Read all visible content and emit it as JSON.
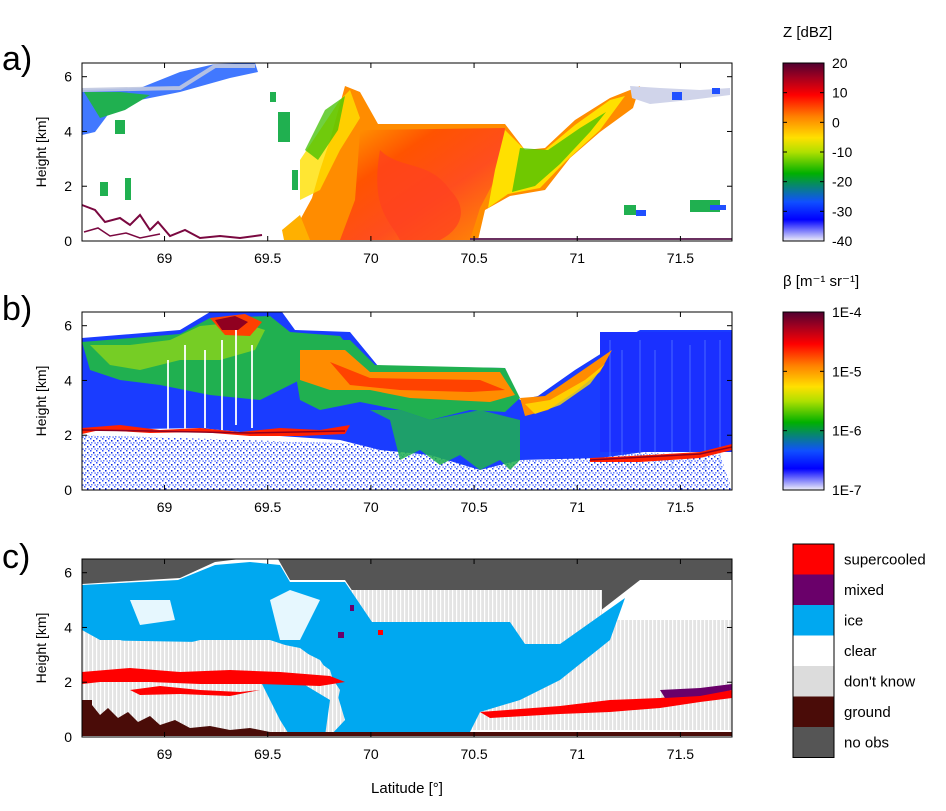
{
  "chart_data": [
    {
      "type": "heatmap",
      "panel": "a)",
      "ylabel": "Height [km]",
      "xlim": [
        68.6,
        71.75
      ],
      "ylim": [
        0,
        6.5
      ],
      "xticks": [
        "69",
        "69.5",
        "70",
        "70.5",
        "71",
        "71.5"
      ],
      "yticks": [
        "0",
        "2",
        "4",
        "6"
      ],
      "colorbar": {
        "title": "Z [dBZ]",
        "range": [
          -40,
          20
        ],
        "ticks": [
          "20",
          "10",
          "0",
          "-10",
          "-20",
          "-30",
          "-40"
        ],
        "colors": [
          "#f0f0f8",
          "#0000ff",
          "#00b000",
          "#ffff00",
          "#ff8000",
          "#ff0000",
          "#500030"
        ]
      },
      "field_summary": [
        {
          "lat_range": [
            69.85,
            70.55
          ],
          "height_range": [
            0,
            4.2
          ],
          "value_dbz": [
            -5,
            10
          ]
        },
        {
          "lat_range": [
            70.55,
            71.3
          ],
          "height_range": [
            1.8,
            5.5
          ],
          "value_dbz": [
            -20,
            0
          ]
        },
        {
          "lat_range": [
            68.6,
            69.3
          ],
          "height_range": [
            4.5,
            6.2
          ],
          "value_dbz": [
            -35,
            -15
          ]
        },
        {
          "lat_range": [
            68.6,
            69.5
          ],
          "height_range": [
            0,
            1.2
          ],
          "value_dbz": [
            10,
            20
          ]
        }
      ]
    },
    {
      "type": "heatmap",
      "panel": "b)",
      "ylabel": "Height [km]",
      "xlim": [
        68.6,
        71.75
      ],
      "ylim": [
        0,
        6.5
      ],
      "xticks": [
        "69",
        "69.5",
        "70",
        "70.5",
        "71",
        "71.5"
      ],
      "yticks": [
        "0",
        "2",
        "4",
        "6"
      ],
      "colorbar": {
        "title": "β [m⁻¹ sr⁻¹]",
        "range": [
          "1E-7",
          "1E-4"
        ],
        "scale": "log",
        "ticks": [
          "1E-4",
          "1E-5",
          "1E-6",
          "1E-7"
        ],
        "colors": [
          "#f0f0f8",
          "#0000ff",
          "#00b000",
          "#ffff00",
          "#ff8000",
          "#ff0000",
          "#500030"
        ]
      },
      "field_summary": [
        {
          "lat_range": [
            68.6,
            69.6
          ],
          "height_range": [
            4.5,
            6.4
          ],
          "value": "1E-5"
        },
        {
          "lat_range": [
            69.95,
            70.65
          ],
          "height_range": [
            3.5,
            4.2
          ],
          "value": "1E-5"
        },
        {
          "lat_range": [
            68.6,
            70.0
          ],
          "height_range": [
            2.1,
            2.3
          ],
          "value": "1E-4"
        },
        {
          "lat_range": [
            70.7,
            71.75
          ],
          "height_range": [
            1.1,
            1.5
          ],
          "value": "1E-4"
        }
      ]
    },
    {
      "type": "heatmap",
      "panel": "c)",
      "ylabel": "Height [km]",
      "xlabel": "Latitude [°]",
      "xlim": [
        68.6,
        71.75
      ],
      "ylim": [
        0,
        6.5
      ],
      "xticks": [
        "69",
        "69.5",
        "70",
        "70.5",
        "71",
        "71.5"
      ],
      "yticks": [
        "0",
        "2",
        "4",
        "6"
      ],
      "legend": [
        {
          "label": "supercooled",
          "color": "#ff0000"
        },
        {
          "label": "mixed",
          "color": "#6a006a"
        },
        {
          "label": "ice",
          "color": "#00a8f0"
        },
        {
          "label": "clear",
          "color": "#ffffff"
        },
        {
          "label": "don't know",
          "color": "#dcdcdc"
        },
        {
          "label": "ground",
          "color": "#4a0c08"
        },
        {
          "label": "no obs",
          "color": "#555555"
        }
      ]
    }
  ]
}
